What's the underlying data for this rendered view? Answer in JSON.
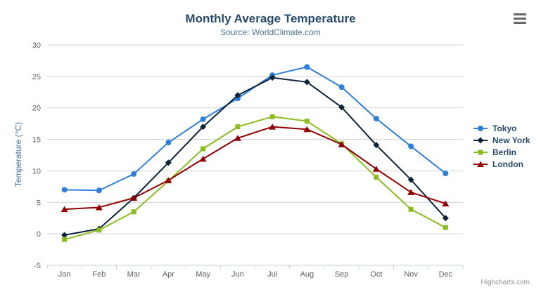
{
  "chart": {
    "title": "Monthly Average Temperature",
    "subtitle": "Source: WorldClimate.com",
    "y_axis_title": "Temperature (°C)",
    "credit": "Highcharts.com"
  },
  "chart_data": {
    "type": "line",
    "title": "Monthly Average Temperature",
    "subtitle": "Source: WorldClimate.com",
    "categories": [
      "Jan",
      "Feb",
      "Mar",
      "Apr",
      "May",
      "Jun",
      "Jul",
      "Aug",
      "Sep",
      "Oct",
      "Nov",
      "Dec"
    ],
    "series": [
      {
        "name": "Tokyo",
        "color": "#2f7ed8",
        "marker": "circle",
        "values": [
          7.0,
          6.9,
          9.5,
          14.5,
          18.2,
          21.5,
          25.2,
          26.5,
          23.3,
          18.3,
          13.9,
          9.6
        ]
      },
      {
        "name": "New York",
        "color": "#0d233a",
        "marker": "diamond",
        "values": [
          -0.2,
          0.8,
          5.7,
          11.3,
          17.0,
          22.0,
          24.8,
          24.1,
          20.1,
          14.1,
          8.6,
          2.5
        ]
      },
      {
        "name": "Berlin",
        "color": "#8bbc21",
        "marker": "square",
        "values": [
          -0.9,
          0.6,
          3.5,
          8.4,
          13.5,
          17.0,
          18.6,
          17.9,
          14.3,
          9.0,
          3.9,
          1.0
        ]
      },
      {
        "name": "London",
        "color": "#910000",
        "marker": "triangle",
        "values": [
          3.9,
          4.2,
          5.7,
          8.5,
          11.9,
          15.2,
          17.0,
          16.6,
          14.2,
          10.3,
          6.6,
          4.8
        ]
      }
    ],
    "xlabel": "",
    "ylabel": "Temperature (°C)",
    "ylim": [
      -5,
      30
    ],
    "ytick_step": 5,
    "yticks": [
      "-5",
      "0",
      "5",
      "10",
      "15",
      "20",
      "25",
      "30"
    ],
    "grid": true,
    "legend_position": "right",
    "colors": {
      "grid": "#d0d0d0",
      "axis_line": "#c0d0e0",
      "axis_label": "#606060",
      "title": "#274b6d",
      "subtitle": "#4d759e",
      "legend_text": "#274b6d",
      "credit": "#909090",
      "context_button": "#666666"
    }
  }
}
